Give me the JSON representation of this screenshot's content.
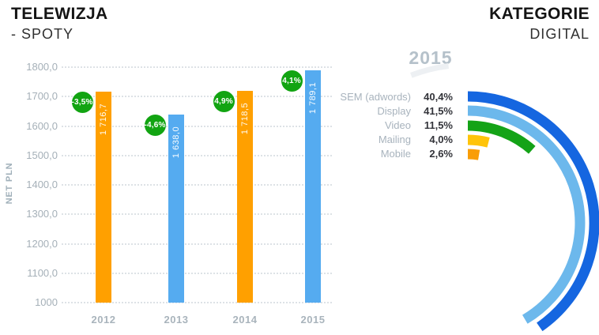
{
  "header": {
    "left": {
      "title": "TELEWIZJA",
      "subtitle": "- SPOTY"
    },
    "right": {
      "title": "KATEGORIE",
      "subtitle": "DIGITAL"
    }
  },
  "chart_data": [
    {
      "type": "bar",
      "title": "TELEWIZJA - SPOTY",
      "xlabel": "",
      "ylabel": "NET PLN",
      "categories": [
        "2012",
        "2013",
        "2014",
        "2015"
      ],
      "values": [
        1716.7,
        1638.0,
        1718.5,
        1789.1
      ],
      "value_labels": [
        "1 716,7",
        "1 638,0",
        "1 718,5",
        "1 789,1"
      ],
      "change_labels": [
        "-3,5%",
        "-4,6%",
        "4,9%",
        "4,1%"
      ],
      "bar_colors": [
        "#FFA000",
        "#55ABF0",
        "#FFA000",
        "#55ABF0"
      ],
      "badge_color": "#12A412",
      "ylim": [
        1000,
        1800
      ],
      "yticks": [
        "1800,0",
        "1700,0",
        "1600,0",
        "1500,0",
        "1400,0",
        "1300,0",
        "1200,0",
        "1100,0",
        "1000"
      ],
      "grid": "horizontal-dotted",
      "legend_position": "none"
    },
    {
      "type": "radial-bar",
      "title": "2015",
      "legend_position": "left",
      "full_circle_pct": 100,
      "series": [
        {
          "name": "SEM (adwords)",
          "value_pct": 40.4,
          "label": "40,4%",
          "color": "#1566E0"
        },
        {
          "name": "Display",
          "value_pct": 41.5,
          "label": "41,5%",
          "color": "#6CB8EC"
        },
        {
          "name": "Video",
          "value_pct": 11.5,
          "label": "11,5%",
          "color": "#14A317"
        },
        {
          "name": "Mailing",
          "value_pct": 4.0,
          "label": "4,0%",
          "color": "#FFC40A"
        },
        {
          "name": "Mobile",
          "value_pct": 2.6,
          "label": "2,6%",
          "color": "#F99D07"
        }
      ]
    }
  ]
}
